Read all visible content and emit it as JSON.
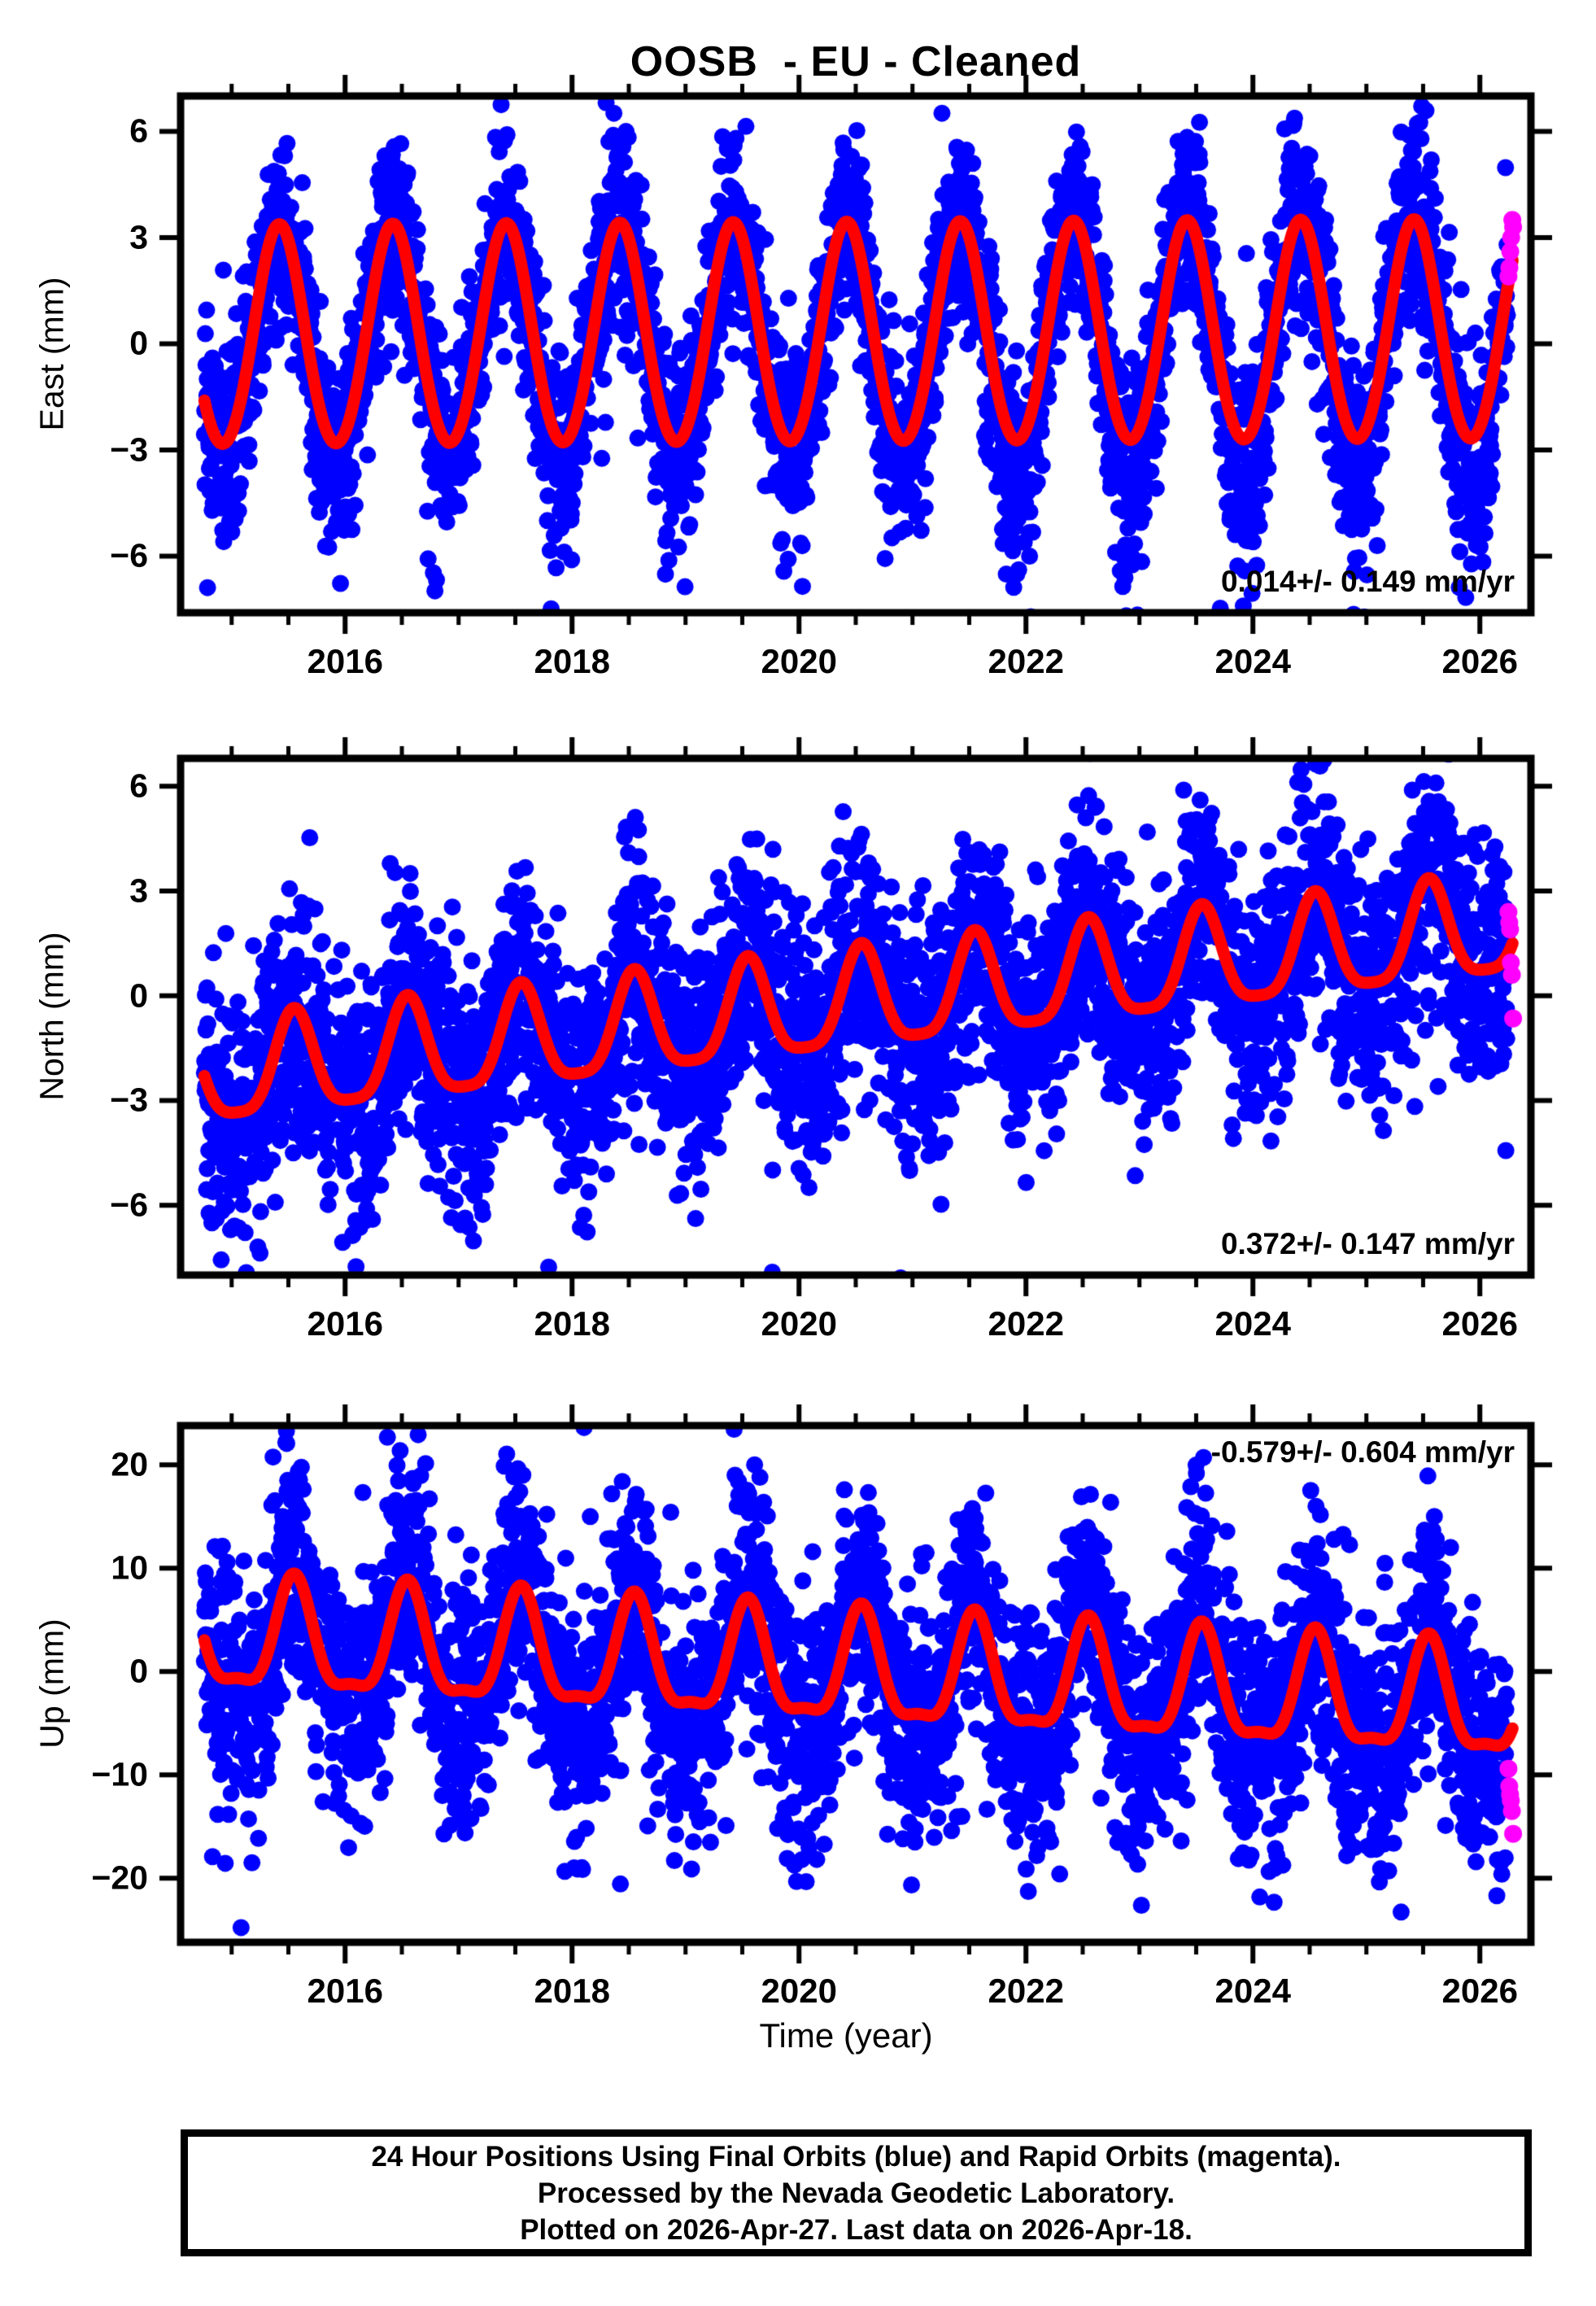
{
  "title": "OOSB  - EU - Cleaned",
  "x_axis": {
    "label": "Time (year)",
    "limits": [
      2014.55,
      2026.45
    ],
    "major_ticks": [
      2016,
      2018,
      2020,
      2022,
      2024,
      2026
    ],
    "minor_tick_step": 0.5
  },
  "data_span": {
    "start": 2014.76,
    "final_end": 2026.245,
    "rapid_end": 2026.295
  },
  "colors": {
    "final_orbit": "#0000ff",
    "rapid_orbit": "#ff00ff",
    "model_fit": "#ff0000",
    "axis": "#000000",
    "background": "#ffffff"
  },
  "footer": {
    "lines": [
      "24 Hour Positions Using Final Orbits (blue) and Rapid Orbits (magenta).",
      "Processed by the Nevada Geodetic Laboratory.",
      "Plotted on 2026-Apr-27. Last data on 2026-Apr-18."
    ]
  },
  "chart_data": [
    {
      "type": "scatter",
      "name": "East",
      "ylabel": "East (mm)",
      "ylim": [
        -7.6,
        7.0
      ],
      "yticks": [
        -6,
        -3,
        0,
        3,
        6
      ],
      "rate_label": "0.014+/- 0.149 mm/yr",
      "rate_mm_per_yr": 0.014,
      "rate_sigma_mm_per_yr": 0.149,
      "rate_label_position": "bottom-right",
      "fit_model": {
        "reference_time": 2020.5,
        "reference_value_mm": 0.2,
        "trend_mm_per_yr": 0.014,
        "annual_amplitude_mm": 3.1,
        "annual_peak_yearfrac": 0.42,
        "semiannual_amplitude_mm": 0.15,
        "semiannual_peak_yearfrac": 0.42
      },
      "scatter_noise": {
        "sd_mm": 1.35,
        "tails": [
          {
            "after": 2014.5,
            "season_center": 0.92,
            "prob": 0.3,
            "extra_sd": 0.9,
            "sign": -1
          },
          {
            "after": 2021.0,
            "season_center": 0.92,
            "prob": 0.55,
            "extra_sd": 1.8,
            "sign": -1
          }
        ]
      },
      "rapid_points": [
        [
          2026.252,
          1.9
        ],
        [
          2026.26,
          2.15
        ],
        [
          2026.268,
          2.6
        ],
        [
          2026.276,
          3.0
        ],
        [
          2026.286,
          3.5
        ],
        [
          2026.293,
          3.3
        ]
      ],
      "seed": 101
    },
    {
      "type": "scatter",
      "name": "North",
      "ylabel": "North (mm)",
      "ylim": [
        -8.0,
        6.8
      ],
      "yticks": [
        -6,
        -3,
        0,
        3,
        6
      ],
      "rate_label": "0.372+/- 0.147 mm/yr",
      "rate_mm_per_yr": 0.372,
      "rate_sigma_mm_per_yr": 0.147,
      "rate_label_position": "bottom-right",
      "fit_model": {
        "reference_time": 2014.8,
        "reference_value_mm": -2.35,
        "trend_mm_per_yr": 0.372,
        "annual_amplitude_mm": 1.4,
        "annual_peak_yearfrac": 0.55,
        "semiannual_amplitude_mm": 0.32,
        "semiannual_peak_yearfrac": 0.05
      },
      "scatter_noise": {
        "sd_mm": 1.7,
        "tails": [
          {
            "after": 2014.5,
            "season_center": 0.1,
            "prob": 0.25,
            "extra_sd": 1.0,
            "sign": -1
          }
        ]
      },
      "rapid_points": [
        [
          2026.252,
          2.4
        ],
        [
          2026.259,
          2.1
        ],
        [
          2026.266,
          1.9
        ],
        [
          2026.273,
          0.95
        ],
        [
          2026.282,
          0.6
        ],
        [
          2026.293,
          -0.65
        ]
      ],
      "seed": 202
    },
    {
      "type": "scatter",
      "name": "Up",
      "ylabel": "Up (mm)",
      "ylim": [
        -26.2,
        23.8
      ],
      "yticks": [
        -20,
        -10,
        0,
        10,
        20
      ],
      "rate_label": "-0.579+/- 0.604 mm/yr",
      "rate_mm_per_yr": -0.579,
      "rate_sigma_mm_per_yr": 0.604,
      "rate_label_position": "top-right",
      "fit_model": {
        "reference_time": 2015.0,
        "reference_value_mm": 3.0,
        "trend_mm_per_yr": -0.579,
        "annual_amplitude_mm": 5.2,
        "annual_peak_yearfrac": 0.55,
        "semiannual_amplitude_mm": 1.6,
        "semiannual_peak_yearfrac": 0.55
      },
      "scatter_noise": {
        "sd_mm": 5.4,
        "tails": [
          {
            "after": 2014.5,
            "season_center": 0.05,
            "prob": 0.45,
            "extra_sd": 4.2,
            "sign": -1
          },
          {
            "after": 2014.5,
            "season_center": 0.55,
            "prob": 0.35,
            "extra_sd": 3.2,
            "sign": 1
          }
        ]
      },
      "rapid_points": [
        [
          2026.252,
          -9.4
        ],
        [
          2026.259,
          -11.1
        ],
        [
          2026.266,
          -11.9
        ],
        [
          2026.273,
          -12.5
        ],
        [
          2026.282,
          -13.5
        ],
        [
          2026.293,
          -15.7
        ]
      ],
      "seed": 303
    }
  ]
}
